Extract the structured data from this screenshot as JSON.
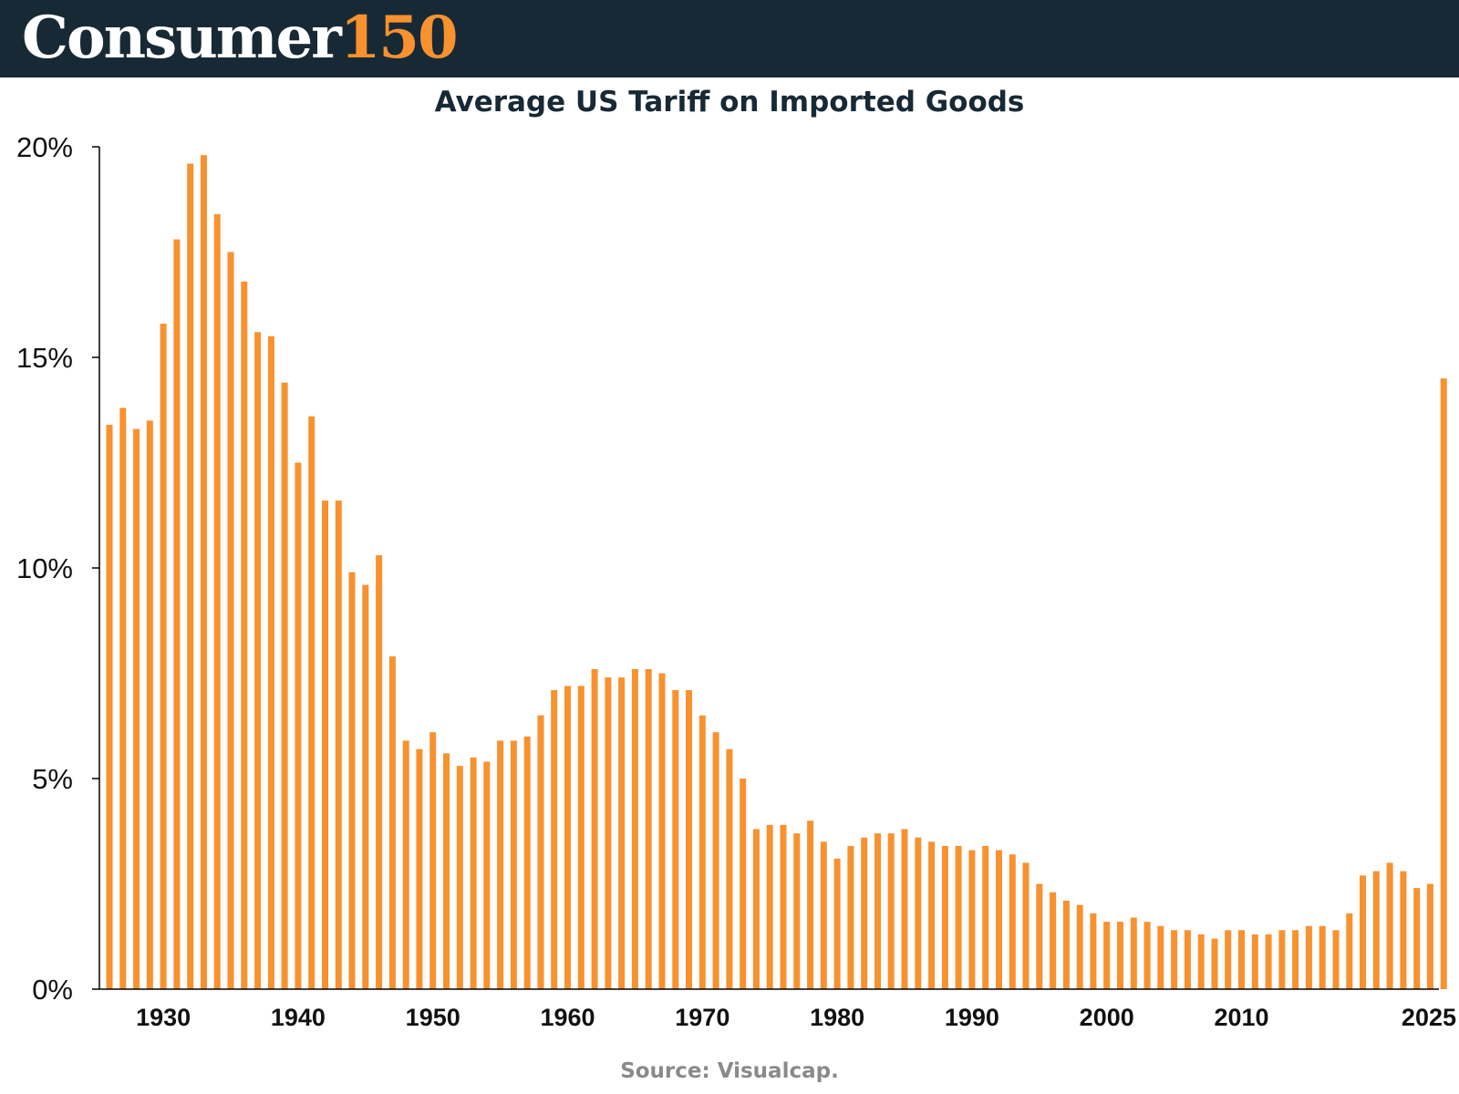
{
  "header": {
    "brand_name": "Consumer",
    "brand_number": "150",
    "background": "#172935",
    "accent": "#f7922f"
  },
  "chart_data": {
    "type": "bar",
    "title": "Average US Tariff on Imported Goods",
    "xlabel": "",
    "ylabel": "",
    "bar_color": "#f7922f",
    "ylim": [
      0,
      20
    ],
    "ytick_values": [
      0,
      5,
      10,
      15,
      20
    ],
    "ytick_labels": [
      "0%",
      "5%",
      "10%",
      "15%",
      "20%"
    ],
    "xtick_values": [
      1930,
      1940,
      1950,
      1960,
      1970,
      1980,
      1990,
      2000,
      2010,
      2025
    ],
    "xtick_labels": [
      "1930",
      "1940",
      "1950",
      "1960",
      "1970",
      "1980",
      "1990",
      "2000",
      "2010",
      "2025"
    ],
    "grid": false,
    "legend": "none",
    "x": [
      1926,
      1927,
      1928,
      1929,
      1930,
      1931,
      1932,
      1933,
      1934,
      1935,
      1936,
      1937,
      1938,
      1939,
      1940,
      1941,
      1942,
      1943,
      1944,
      1945,
      1946,
      1947,
      1948,
      1949,
      1950,
      1951,
      1952,
      1953,
      1954,
      1955,
      1956,
      1957,
      1958,
      1959,
      1960,
      1961,
      1962,
      1963,
      1964,
      1965,
      1966,
      1967,
      1968,
      1969,
      1970,
      1971,
      1972,
      1973,
      1974,
      1975,
      1976,
      1977,
      1978,
      1979,
      1980,
      1981,
      1982,
      1983,
      1984,
      1985,
      1986,
      1987,
      1988,
      1989,
      1990,
      1991,
      1992,
      1993,
      1994,
      1995,
      1996,
      1997,
      1998,
      1999,
      2000,
      2001,
      2002,
      2003,
      2004,
      2005,
      2006,
      2007,
      2008,
      2009,
      2010,
      2011,
      2012,
      2013,
      2014,
      2015,
      2016,
      2017,
      2018,
      2019,
      2020,
      2021,
      2022,
      2023,
      2024,
      2025
    ],
    "values": [
      13.4,
      13.8,
      13.3,
      13.5,
      15.8,
      17.8,
      19.6,
      19.8,
      18.4,
      17.5,
      16.8,
      15.6,
      15.5,
      14.4,
      12.5,
      13.6,
      11.6,
      11.6,
      9.9,
      9.6,
      10.3,
      7.9,
      5.9,
      5.7,
      6.1,
      5.6,
      5.3,
      5.5,
      5.4,
      5.9,
      5.9,
      6.0,
      6.5,
      7.1,
      7.2,
      7.2,
      7.6,
      7.4,
      7.4,
      7.6,
      7.6,
      7.5,
      7.1,
      7.1,
      6.5,
      6.1,
      5.7,
      5.0,
      3.8,
      3.9,
      3.9,
      3.7,
      4.0,
      3.5,
      3.1,
      3.4,
      3.6,
      3.7,
      3.7,
      3.8,
      3.6,
      3.5,
      3.4,
      3.4,
      3.3,
      3.4,
      3.3,
      3.2,
      3.0,
      2.5,
      2.3,
      2.1,
      2.0,
      1.8,
      1.6,
      1.6,
      1.7,
      1.6,
      1.5,
      1.4,
      1.4,
      1.3,
      1.2,
      1.4,
      1.4,
      1.3,
      1.3,
      1.4,
      1.4,
      1.5,
      1.5,
      1.4,
      1.8,
      2.7,
      2.8,
      3.0,
      2.8,
      2.4,
      2.5,
      14.5
    ]
  },
  "footer": {
    "source": "Source: Visualcap."
  }
}
